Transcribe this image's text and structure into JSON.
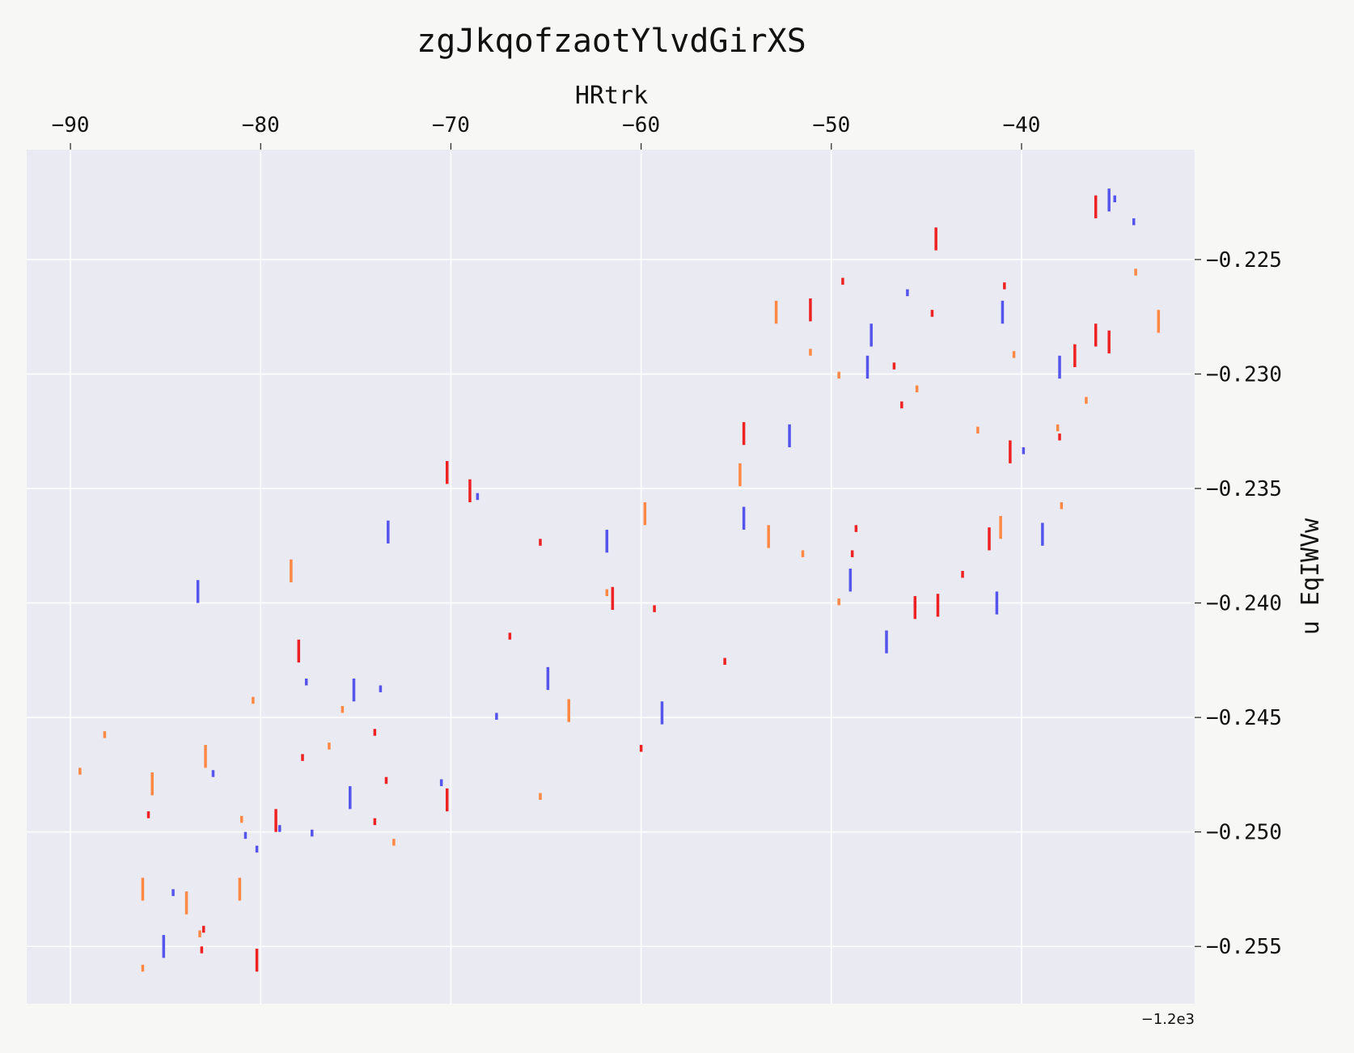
{
  "chart_data": {
    "type": "scatter",
    "title": "zgJkqofzaotYlvdGirXS",
    "xlabel": "HRtrk",
    "ylabel": "u EqIWVw",
    "x_offset_label": "−1.2e3",
    "x_offset": -1200,
    "xlim": [
      -92.3,
      -30.9
    ],
    "ylim": [
      -0.2575,
      -0.2202
    ],
    "x_ticks": [
      -90,
      -80,
      -70,
      -60,
      -50,
      -40
    ],
    "x_tick_labels": [
      "−90",
      "−80",
      "−70",
      "−60",
      "−50",
      "−40"
    ],
    "y_ticks": [
      -0.225,
      -0.23,
      -0.235,
      -0.24,
      -0.245,
      -0.25,
      -0.255
    ],
    "y_tick_labels": [
      "−0.225",
      "−0.230",
      "−0.235",
      "−0.240",
      "−0.245",
      "−0.250",
      "−0.255"
    ],
    "x_axis_position": "top",
    "y_axis_position": "right",
    "grid": true,
    "marker": "vertical line",
    "colors": {
      "page_bg": "#f7f8f5",
      "plot_bg": "#eaeaf2",
      "grid": "#ffffff",
      "blue": "#5555ee",
      "red": "#ee2222",
      "orange": "#ff8844"
    },
    "series": [
      {
        "color": "blue",
        "points": [
          [
            -35.4,
            -0.2219,
            0.001
          ],
          [
            -35.1,
            -0.2222,
            0.0003
          ],
          [
            -34.1,
            -0.2232,
            0.0003
          ],
          [
            -46.0,
            -0.2263,
            0.0003
          ],
          [
            -41.0,
            -0.2268,
            0.001
          ],
          [
            -47.9,
            -0.2278,
            0.001
          ],
          [
            -48.1,
            -0.2292,
            0.001
          ],
          [
            -38.0,
            -0.2292,
            0.001
          ],
          [
            -52.2,
            -0.2322,
            0.001
          ],
          [
            -39.9,
            -0.2332,
            0.0003
          ],
          [
            -68.6,
            -0.2352,
            0.0003
          ],
          [
            -54.6,
            -0.2358,
            0.001
          ],
          [
            -73.3,
            -0.2364,
            0.001
          ],
          [
            -61.8,
            -0.2368,
            0.001
          ],
          [
            -38.9,
            -0.2365,
            0.001
          ],
          [
            -83.3,
            -0.239,
            0.001
          ],
          [
            -49.0,
            -0.2385,
            0.001
          ],
          [
            -45.6,
            -0.2399,
            0.0003
          ],
          [
            -41.3,
            -0.2395,
            0.001
          ],
          [
            -47.1,
            -0.2412,
            0.001
          ],
          [
            -64.9,
            -0.2428,
            0.001
          ],
          [
            -77.6,
            -0.2433,
            0.0003
          ],
          [
            -75.1,
            -0.2433,
            0.001
          ],
          [
            -73.7,
            -0.2436,
            0.0003
          ],
          [
            -58.9,
            -0.2443,
            0.001
          ],
          [
            -67.6,
            -0.2448,
            0.0003
          ],
          [
            -82.5,
            -0.2473,
            0.0003
          ],
          [
            -75.3,
            -0.248,
            0.001
          ],
          [
            -70.5,
            -0.2477,
            0.0003
          ],
          [
            -80.8,
            -0.25,
            0.0003
          ],
          [
            -79.0,
            -0.2497,
            0.0003
          ],
          [
            -77.3,
            -0.2499,
            0.0003
          ],
          [
            -80.2,
            -0.2506,
            0.0003
          ],
          [
            -84.6,
            -0.2525,
            0.0003
          ],
          [
            -85.1,
            -0.2545,
            0.001
          ]
        ]
      },
      {
        "color": "red",
        "points": [
          [
            -36.1,
            -0.2222,
            0.001
          ],
          [
            -44.5,
            -0.2236,
            0.001
          ],
          [
            -49.4,
            -0.2258,
            0.0003
          ],
          [
            -51.1,
            -0.2267,
            0.001
          ],
          [
            -40.9,
            -0.226,
            0.0003
          ],
          [
            -44.7,
            -0.2272,
            0.0003
          ],
          [
            -36.1,
            -0.2278,
            0.001
          ],
          [
            -35.4,
            -0.2281,
            0.001
          ],
          [
            -37.2,
            -0.2287,
            0.001
          ],
          [
            -46.7,
            -0.2295,
            0.0003
          ],
          [
            -46.3,
            -0.2312,
            0.0003
          ],
          [
            -54.6,
            -0.2321,
            0.001
          ],
          [
            -40.6,
            -0.2329,
            0.001
          ],
          [
            -38.0,
            -0.2326,
            0.0003
          ],
          [
            -70.2,
            -0.2338,
            0.001
          ],
          [
            -69.0,
            -0.2346,
            0.001
          ],
          [
            -48.7,
            -0.2366,
            0.0003
          ],
          [
            -41.7,
            -0.2367,
            0.001
          ],
          [
            -65.3,
            -0.2372,
            0.0003
          ],
          [
            -48.9,
            -0.2377,
            0.0003
          ],
          [
            -43.1,
            -0.2386,
            0.0003
          ],
          [
            -61.5,
            -0.2393,
            0.001
          ],
          [
            -45.6,
            -0.2397,
            0.001
          ],
          [
            -44.4,
            -0.2396,
            0.001
          ],
          [
            -59.3,
            -0.2401,
            0.0003
          ],
          [
            -66.9,
            -0.2413,
            0.0003
          ],
          [
            -78.0,
            -0.2416,
            0.001
          ],
          [
            -55.6,
            -0.2424,
            0.0003
          ],
          [
            -74.0,
            -0.2455,
            0.0003
          ],
          [
            -60.0,
            -0.2462,
            0.0003
          ],
          [
            -77.8,
            -0.2466,
            0.0003
          ],
          [
            -73.4,
            -0.2476,
            0.0003
          ],
          [
            -70.2,
            -0.2481,
            0.001
          ],
          [
            -79.2,
            -0.249,
            0.001
          ],
          [
            -85.9,
            -0.2491,
            0.0003
          ],
          [
            -74.0,
            -0.2494,
            0.0003
          ],
          [
            -83.0,
            -0.2541,
            0.0003
          ],
          [
            -80.2,
            -0.2551,
            0.001
          ],
          [
            -83.1,
            -0.255,
            0.0003
          ]
        ]
      },
      {
        "color": "orange",
        "points": [
          [
            -34.0,
            -0.2254,
            0.0003
          ],
          [
            -52.9,
            -0.2268,
            0.001
          ],
          [
            -32.8,
            -0.2272,
            0.001
          ],
          [
            -51.1,
            -0.2289,
            0.0003
          ],
          [
            -40.4,
            -0.229,
            0.0003
          ],
          [
            -49.6,
            -0.2299,
            0.0003
          ],
          [
            -45.5,
            -0.2305,
            0.0003
          ],
          [
            -36.6,
            -0.231,
            0.0003
          ],
          [
            -42.3,
            -0.2323,
            0.0003
          ],
          [
            -38.1,
            -0.2322,
            0.0003
          ],
          [
            -54.8,
            -0.2339,
            0.001
          ],
          [
            -59.8,
            -0.2356,
            0.001
          ],
          [
            -37.9,
            -0.2356,
            0.0003
          ],
          [
            -41.1,
            -0.2362,
            0.001
          ],
          [
            -53.3,
            -0.2366,
            0.001
          ],
          [
            -51.5,
            -0.2377,
            0.0003
          ],
          [
            -78.4,
            -0.2381,
            0.001
          ],
          [
            -61.8,
            -0.2394,
            0.0003
          ],
          [
            -49.6,
            -0.2398,
            0.0003
          ],
          [
            -80.4,
            -0.2441,
            0.0003
          ],
          [
            -75.7,
            -0.2445,
            0.0003
          ],
          [
            -63.8,
            -0.2442,
            0.001
          ],
          [
            -88.2,
            -0.2456,
            0.0003
          ],
          [
            -76.4,
            -0.2461,
            0.0003
          ],
          [
            -82.9,
            -0.2462,
            0.001
          ],
          [
            -89.5,
            -0.2472,
            0.0003
          ],
          [
            -85.7,
            -0.2474,
            0.001
          ],
          [
            -65.3,
            -0.2483,
            0.0003
          ],
          [
            -81.0,
            -0.2493,
            0.0003
          ],
          [
            -73.0,
            -0.2503,
            0.0003
          ],
          [
            -86.2,
            -0.252,
            0.001
          ],
          [
            -81.1,
            -0.252,
            0.001
          ],
          [
            -83.9,
            -0.2526,
            0.001
          ],
          [
            -83.2,
            -0.2543,
            0.0003
          ],
          [
            -86.2,
            -0.2558,
            0.0003
          ]
        ]
      }
    ]
  }
}
